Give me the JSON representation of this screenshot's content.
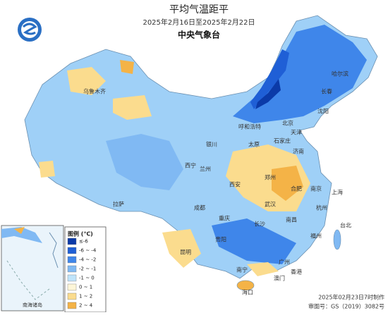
{
  "header": {
    "title": "平均气温距平",
    "subtitle": "2025年2月16日至2025年2月22日",
    "agency": "中央气象台"
  },
  "legend": {
    "title": "图例 (℃)",
    "items": [
      {
        "label": "≤-6",
        "color": "#0b3aa8"
      },
      {
        "label": "-6 ~ -4",
        "color": "#1f5fd6"
      },
      {
        "label": "-4 ~ -2",
        "color": "#3f86ea"
      },
      {
        "label": "-2 ~ -1",
        "color": "#80b9f3"
      },
      {
        "label": "-1 ~ 0",
        "color": "#bfe4fb"
      },
      {
        "label": "0 ~ 1",
        "color": "#fdf6d8"
      },
      {
        "label": "1 ~ 2",
        "color": "#fbdc8e"
      },
      {
        "label": "2 ~ 4",
        "color": "#f4b347"
      }
    ]
  },
  "cities": [
    "乌鲁木齐",
    "哈尔滨",
    "长春",
    "沈阳",
    "北京",
    "天津",
    "石家庄",
    "济南",
    "太原",
    "呼和浩特",
    "银川",
    "西宁",
    "兰州",
    "西安",
    "郑州",
    "合肥",
    "南京",
    "上海",
    "武汉",
    "杭州",
    "长沙",
    "南昌",
    "福州",
    "台北",
    "成都",
    "重庆",
    "贵阳",
    "昆明",
    "南宁",
    "广州",
    "香港",
    "澳门",
    "海口",
    "拉萨"
  ],
  "inset": {
    "label": "南海诸岛"
  },
  "footer": {
    "made": "2025年02月23日7时制作",
    "approval": "审图号：GS（2019）3082号"
  }
}
